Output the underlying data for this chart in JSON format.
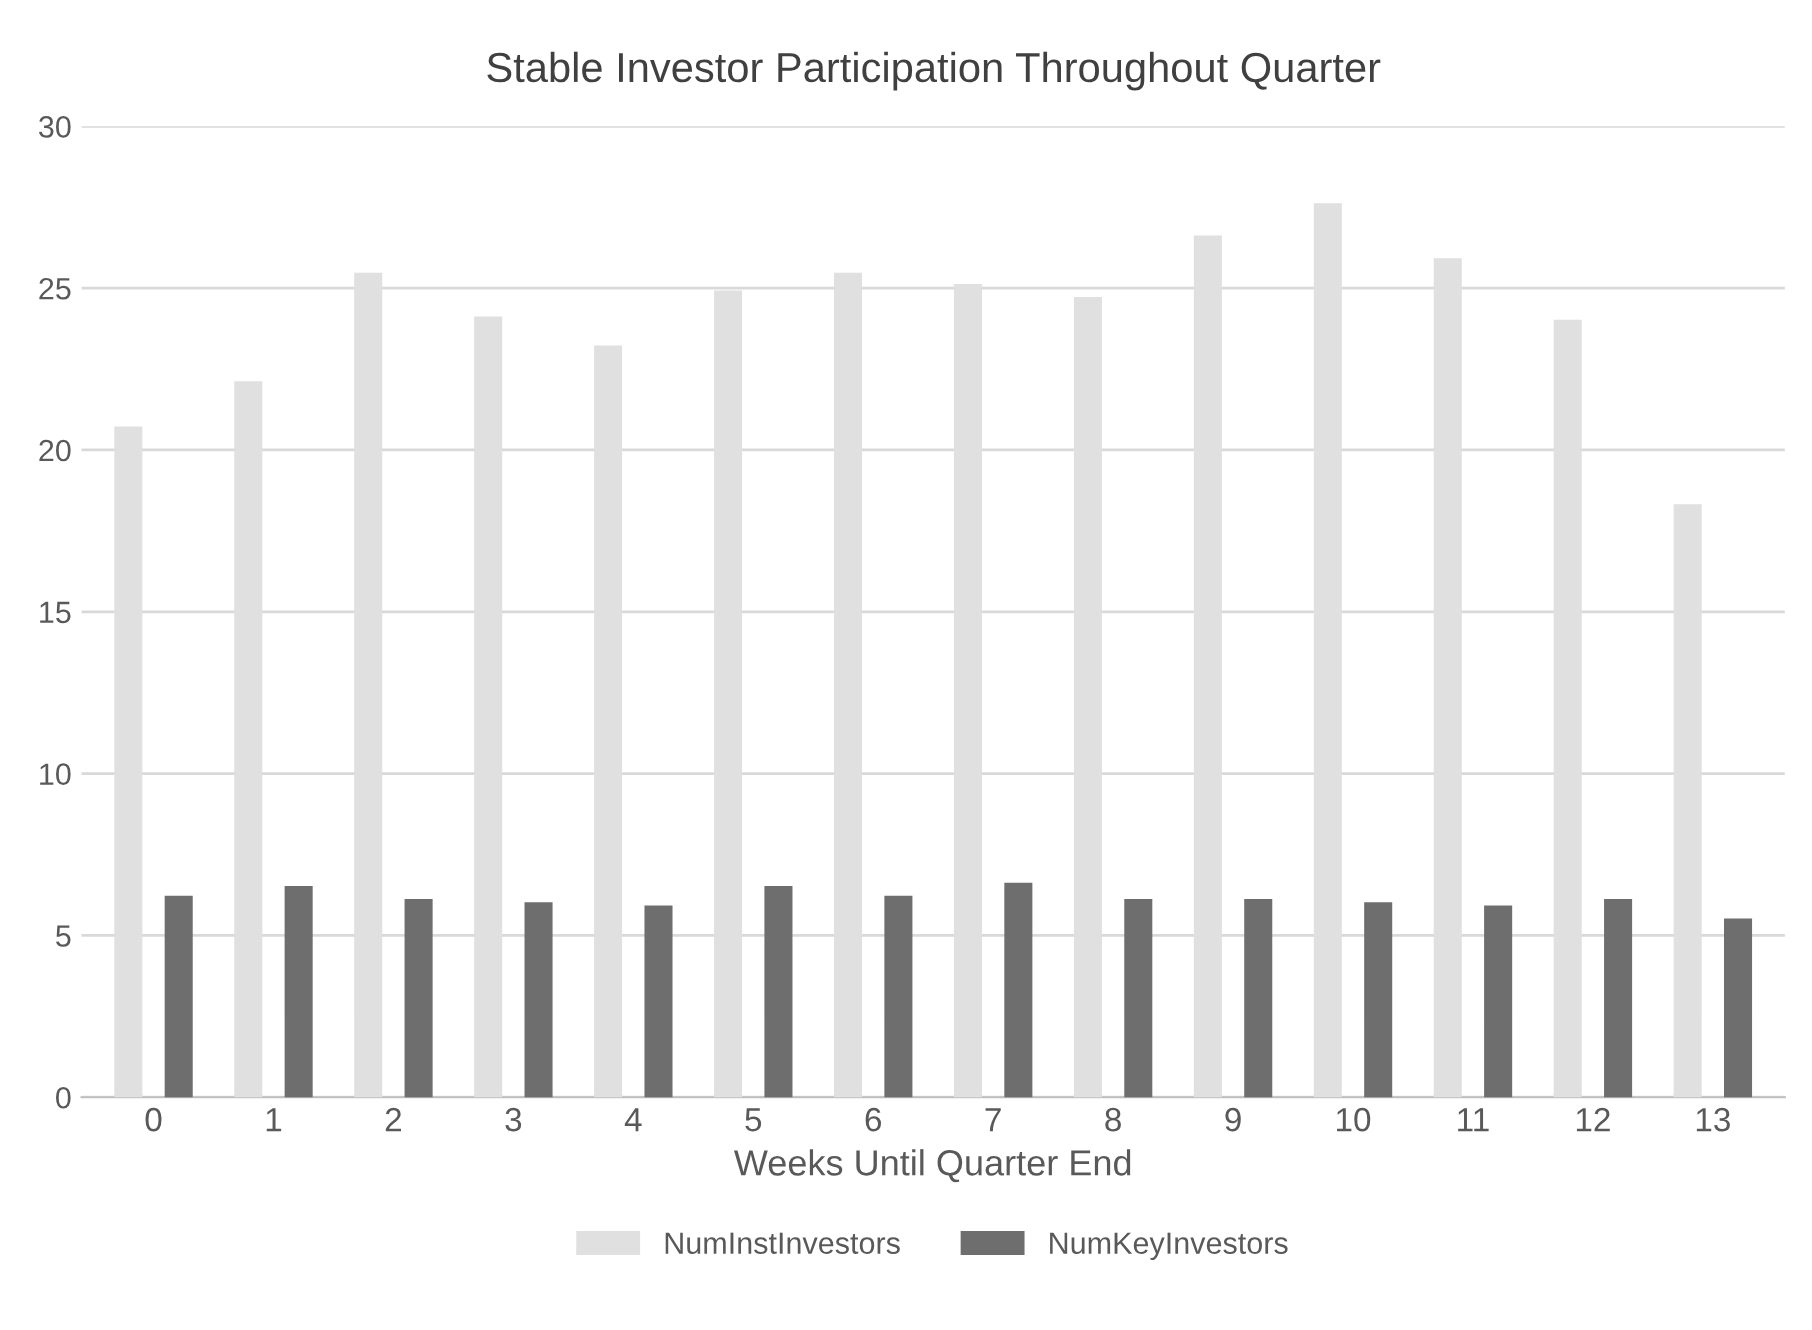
{
  "chart_data": {
    "type": "bar",
    "title": "Stable Investor Participation Throughout Quarter",
    "xlabel": "Weeks Until Quarter End",
    "categories": [
      "0",
      "1",
      "2",
      "3",
      "4",
      "5",
      "6",
      "7",
      "8",
      "9",
      "10",
      "11",
      "12",
      "13"
    ],
    "series": [
      {
        "name": "NumInstInvestors",
        "color": "#e0e0e0",
        "values": [
          20.7,
          22.1,
          25.45,
          24.1,
          23.2,
          24.9,
          25.45,
          25.1,
          24.7,
          26.6,
          27.6,
          25.9,
          24.0,
          18.3
        ]
      },
      {
        "name": "NumKeyInvestors",
        "color": "#6e6e6e",
        "values": [
          6.2,
          6.5,
          6.1,
          6.0,
          5.9,
          6.5,
          6.2,
          6.6,
          6.1,
          6.1,
          6.0,
          5.9,
          6.1,
          5.5
        ]
      }
    ],
    "ylim": [
      0,
      30
    ],
    "yticks": [
      0,
      5,
      10,
      15,
      20,
      25,
      30
    ],
    "grid": "y",
    "legend": "bottom"
  }
}
